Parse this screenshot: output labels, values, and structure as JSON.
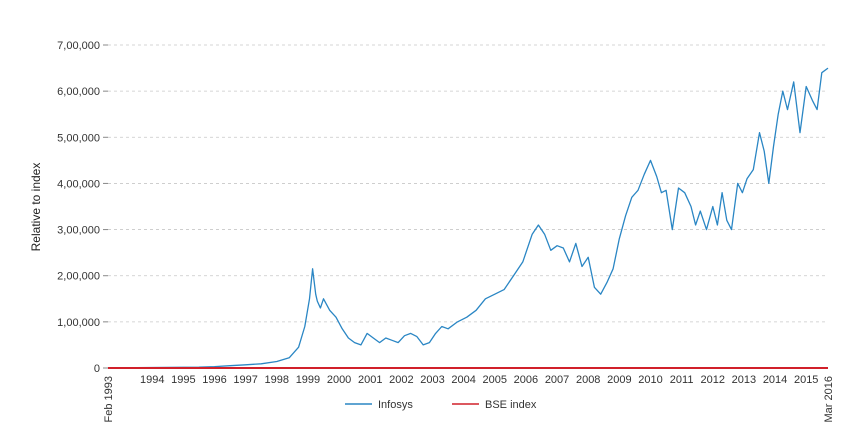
{
  "chart_data": {
    "type": "line",
    "ylabel": "Relative to index",
    "xlabel": "",
    "ylim": [
      0,
      700000
    ],
    "y_ticks": [
      {
        "value": 0,
        "label": "0"
      },
      {
        "value": 100000,
        "label": "1,00,000"
      },
      {
        "value": 200000,
        "label": "2,00,000"
      },
      {
        "value": 300000,
        "label": "3,00,000"
      },
      {
        "value": 400000,
        "label": "4,00,000"
      },
      {
        "value": 500000,
        "label": "5,00,000"
      },
      {
        "value": 600000,
        "label": "6,00,000"
      },
      {
        "value": 700000,
        "label": "7,00,000"
      }
    ],
    "xlim": [
      1993.08,
      2016.2
    ],
    "x_ticks": [
      {
        "value": 1993.08,
        "label": "Feb 1993",
        "rotated": true
      },
      {
        "value": 1994.5,
        "label": "1994"
      },
      {
        "value": 1995.5,
        "label": "1995"
      },
      {
        "value": 1996.5,
        "label": "1996"
      },
      {
        "value": 1997.5,
        "label": "1997"
      },
      {
        "value": 1998.5,
        "label": "1998"
      },
      {
        "value": 1999.5,
        "label": "1999"
      },
      {
        "value": 2000.5,
        "label": "2000"
      },
      {
        "value": 2001.5,
        "label": "2001"
      },
      {
        "value": 2002.5,
        "label": "2002"
      },
      {
        "value": 2003.5,
        "label": "2003"
      },
      {
        "value": 2004.5,
        "label": "2004"
      },
      {
        "value": 2005.5,
        "label": "2005"
      },
      {
        "value": 2006.5,
        "label": "2006"
      },
      {
        "value": 2007.5,
        "label": "2007"
      },
      {
        "value": 2008.5,
        "label": "2008"
      },
      {
        "value": 2009.5,
        "label": "2009"
      },
      {
        "value": 2010.5,
        "label": "2010"
      },
      {
        "value": 2011.5,
        "label": "2011"
      },
      {
        "value": 2012.5,
        "label": "2012"
      },
      {
        "value": 2013.5,
        "label": "2013"
      },
      {
        "value": 2014.5,
        "label": "2014"
      },
      {
        "value": 2015.5,
        "label": "2015"
      },
      {
        "value": 2016.2,
        "label": "Mar 2016",
        "rotated": true
      }
    ],
    "grid": "horizontal-dashed",
    "legend_position": "bottom-center",
    "series": [
      {
        "name": "Infosys",
        "color": "#2a86c4",
        "x": [
          1993.08,
          1994.0,
          1995.0,
          1996.0,
          1996.5,
          1997.0,
          1997.5,
          1998.0,
          1998.5,
          1998.9,
          1999.2,
          1999.4,
          1999.55,
          1999.65,
          1999.75,
          1999.8,
          1999.9,
          2000.0,
          2000.2,
          2000.4,
          2000.6,
          2000.8,
          2001.0,
          2001.2,
          2001.4,
          2001.6,
          2001.8,
          2002.0,
          2002.2,
          2002.4,
          2002.6,
          2002.8,
          2003.0,
          2003.2,
          2003.4,
          2003.6,
          2003.8,
          2004.0,
          2004.3,
          2004.6,
          2004.9,
          2005.2,
          2005.5,
          2005.8,
          2006.1,
          2006.4,
          2006.7,
          2006.9,
          2007.1,
          2007.3,
          2007.5,
          2007.7,
          2007.9,
          2008.1,
          2008.3,
          2008.5,
          2008.7,
          2008.9,
          2009.1,
          2009.3,
          2009.5,
          2009.7,
          2009.9,
          2010.1,
          2010.3,
          2010.5,
          2010.7,
          2010.85,
          2011.0,
          2011.2,
          2011.4,
          2011.6,
          2011.8,
          2011.95,
          2012.1,
          2012.3,
          2012.5,
          2012.65,
          2012.8,
          2012.95,
          2013.1,
          2013.3,
          2013.45,
          2013.6,
          2013.8,
          2014.0,
          2014.15,
          2014.3,
          2014.45,
          2014.6,
          2014.75,
          2014.9,
          2015.1,
          2015.3,
          2015.5,
          2015.7,
          2015.85,
          2016.0,
          2016.2
        ],
        "values": [
          500,
          600,
          1200,
          2000,
          3000,
          5000,
          7000,
          9000,
          14000,
          22000,
          45000,
          90000,
          150000,
          215000,
          160000,
          145000,
          130000,
          150000,
          125000,
          110000,
          85000,
          65000,
          55000,
          50000,
          75000,
          65000,
          55000,
          65000,
          60000,
          55000,
          70000,
          75000,
          68000,
          50000,
          55000,
          75000,
          90000,
          85000,
          100000,
          110000,
          125000,
          150000,
          160000,
          170000,
          200000,
          230000,
          290000,
          310000,
          290000,
          255000,
          265000,
          260000,
          230000,
          270000,
          220000,
          240000,
          175000,
          160000,
          185000,
          215000,
          280000,
          330000,
          370000,
          385000,
          420000,
          450000,
          415000,
          380000,
          385000,
          300000,
          390000,
          380000,
          350000,
          310000,
          340000,
          300000,
          350000,
          310000,
          380000,
          320000,
          300000,
          400000,
          380000,
          410000,
          430000,
          510000,
          470000,
          400000,
          480000,
          550000,
          600000,
          560000,
          620000,
          510000,
          610000,
          580000,
          560000,
          640000,
          650000
        ]
      },
      {
        "name": "BSE index",
        "color": "#d1202a",
        "x": [
          1993.08,
          2016.2
        ],
        "values": [
          100,
          100
        ]
      }
    ]
  }
}
